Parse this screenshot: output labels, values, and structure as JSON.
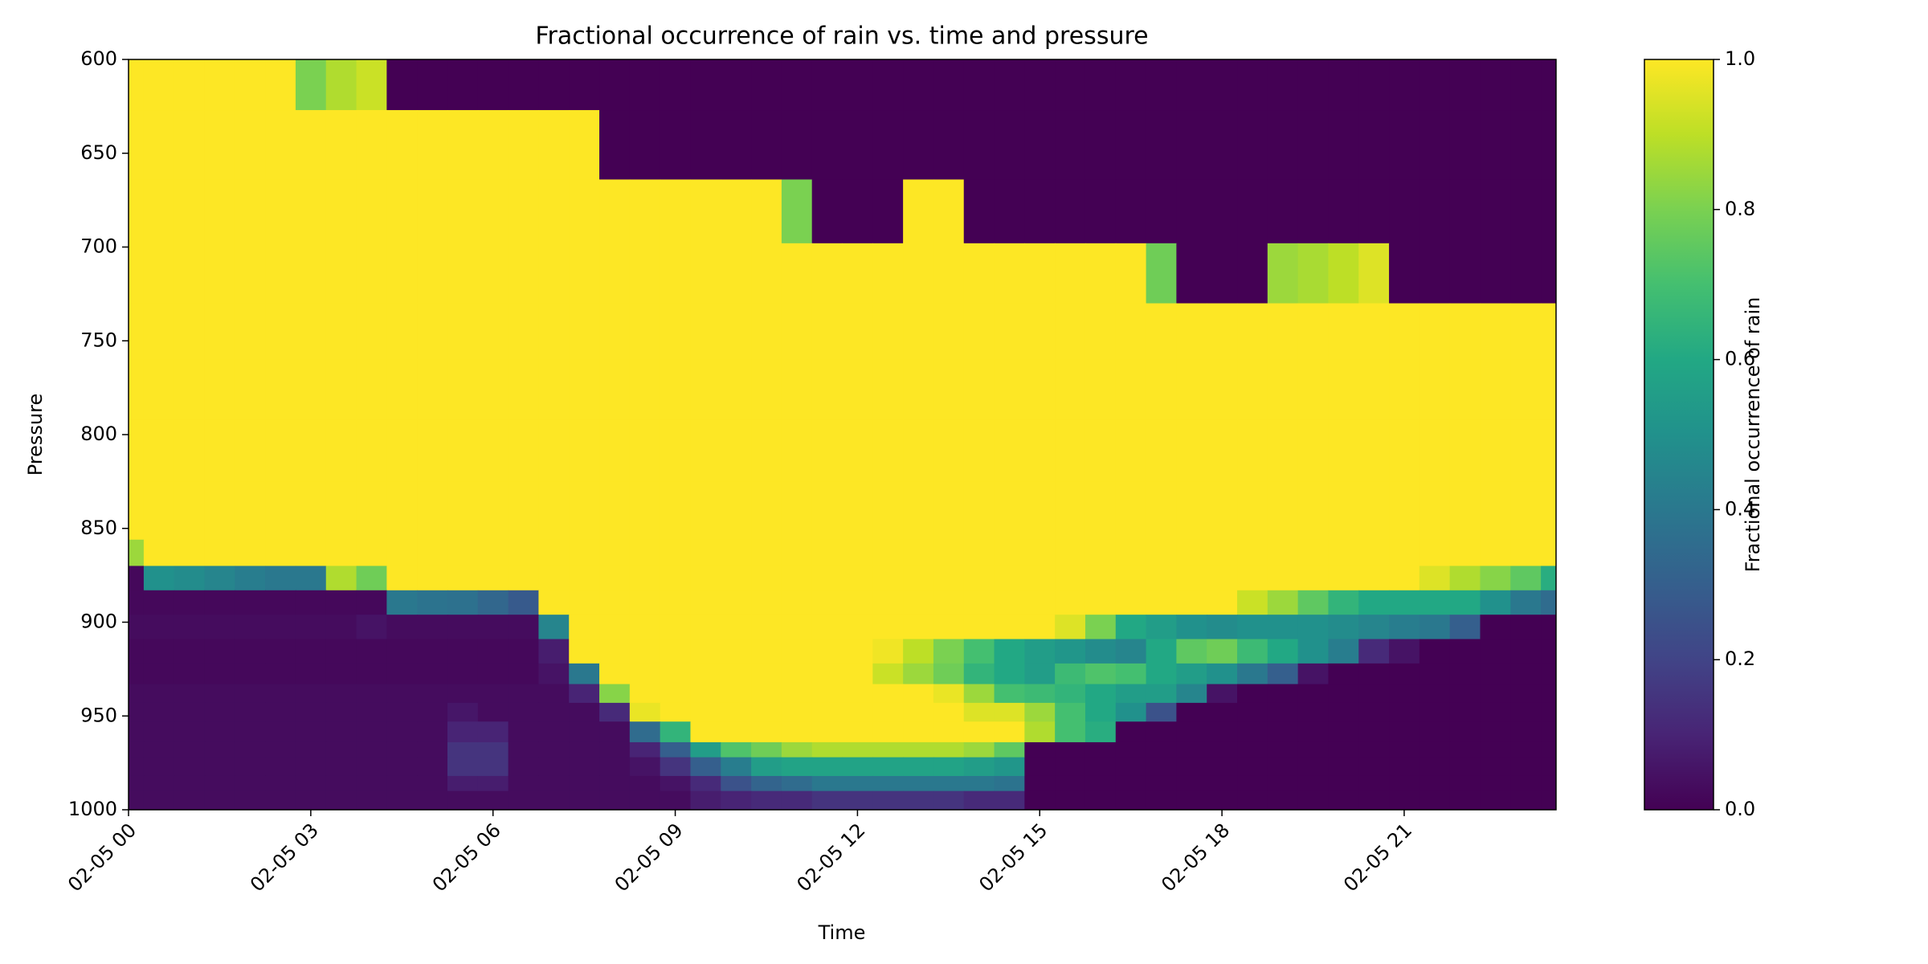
{
  "chart_data": {
    "type": "heatmap",
    "title": "Fractional occurrence of rain vs. time and pressure",
    "x_label": "Time",
    "y_label": "Pressure",
    "colorbar_label": "Fractional occurrence of rain",
    "colormap": "viridis",
    "x": [
      0,
      0.5,
      1,
      1.5,
      2,
      2.5,
      3,
      3.5,
      4,
      4.5,
      5,
      5.5,
      6,
      6.5,
      7,
      7.5,
      8,
      8.5,
      9,
      9.5,
      10,
      10.5,
      11,
      11.5,
      12,
      12.5,
      13,
      13.5,
      14,
      14.5,
      15,
      15.5,
      16,
      16.5,
      17,
      17.5,
      18,
      18.5,
      19,
      19.5,
      20,
      20.5,
      21,
      21.5,
      22,
      22.5,
      23,
      23.5
    ],
    "y_edges": [
      600,
      627,
      664,
      698,
      730,
      760,
      792,
      825,
      856,
      870,
      883,
      896,
      909,
      922,
      933,
      943,
      953,
      964,
      972,
      982,
      990,
      1000
    ],
    "z": [
      [
        1,
        1,
        1,
        1,
        1,
        1,
        0.8,
        0.88,
        0.92,
        0,
        0,
        0,
        0,
        0,
        0,
        0,
        0,
        0,
        0,
        0,
        0,
        0,
        0,
        0,
        0,
        0,
        0,
        0,
        0,
        0,
        0,
        0,
        0,
        0,
        0,
        0,
        0,
        0,
        0,
        0,
        0,
        0,
        0,
        0,
        0,
        0,
        0,
        0
      ],
      [
        1,
        1,
        1,
        1,
        1,
        1,
        1,
        1,
        1,
        1,
        1,
        1,
        1,
        1,
        1,
        1,
        0,
        0,
        0,
        0,
        0,
        0,
        0,
        0,
        0,
        0,
        0,
        0,
        0,
        0,
        0,
        0,
        0,
        0,
        0,
        0,
        0,
        0,
        0,
        0,
        0,
        0,
        0,
        0,
        0,
        0,
        0,
        0
      ],
      [
        1,
        1,
        1,
        1,
        1,
        1,
        1,
        1,
        1,
        1,
        1,
        1,
        1,
        1,
        1,
        1,
        1,
        1,
        1,
        1,
        1,
        1,
        0.8,
        0,
        0,
        0,
        1,
        1,
        0,
        0,
        0,
        0,
        0,
        0,
        0,
        0,
        0,
        0,
        0,
        0,
        0,
        0,
        0,
        0,
        0,
        0,
        0,
        0
      ],
      [
        1,
        1,
        1,
        1,
        1,
        1,
        1,
        1,
        1,
        1,
        1,
        1,
        1,
        1,
        1,
        1,
        1,
        1,
        1,
        1,
        1,
        1,
        1,
        1,
        1,
        1,
        1,
        1,
        1,
        1,
        1,
        1,
        1,
        1,
        0.78,
        0,
        0,
        0,
        0.85,
        0.87,
        0.9,
        0.95,
        0,
        0,
        0,
        0,
        0,
        0
      ],
      [
        1,
        1,
        1,
        1,
        1,
        1,
        1,
        1,
        1,
        1,
        1,
        1,
        1,
        1,
        1,
        1,
        1,
        1,
        1,
        1,
        1,
        1,
        1,
        1,
        1,
        1,
        1,
        1,
        1,
        1,
        1,
        1,
        1,
        1,
        1,
        1,
        1,
        1,
        1,
        1,
        1,
        1,
        1,
        1,
        1,
        1,
        1,
        1
      ],
      [
        1,
        1,
        1,
        1,
        1,
        1,
        1,
        1,
        1,
        1,
        1,
        1,
        1,
        1,
        1,
        1,
        1,
        1,
        1,
        1,
        1,
        1,
        1,
        1,
        1,
        1,
        1,
        1,
        1,
        1,
        1,
        1,
        1,
        1,
        1,
        1,
        1,
        1,
        1,
        1,
        1,
        1,
        1,
        1,
        1,
        1,
        1,
        1
      ],
      [
        1,
        1,
        1,
        1,
        1,
        1,
        1,
        1,
        1,
        1,
        1,
        1,
        1,
        1,
        1,
        1,
        1,
        1,
        1,
        1,
        1,
        1,
        1,
        1,
        1,
        1,
        1,
        1,
        1,
        1,
        1,
        1,
        1,
        1,
        1,
        1,
        1,
        1,
        1,
        1,
        1,
        1,
        1,
        1,
        1,
        1,
        1,
        1
      ],
      [
        1,
        1,
        1,
        1,
        1,
        1,
        1,
        1,
        1,
        1,
        1,
        1,
        1,
        1,
        1,
        1,
        1,
        1,
        1,
        1,
        1,
        1,
        1,
        1,
        1,
        1,
        1,
        1,
        1,
        1,
        1,
        1,
        1,
        1,
        1,
        1,
        1,
        1,
        1,
        1,
        1,
        1,
        1,
        1,
        1,
        1,
        1,
        1
      ],
      [
        0.85,
        1,
        1,
        1,
        1,
        1,
        1,
        1,
        1,
        1,
        1,
        1,
        1,
        1,
        1,
        1,
        1,
        1,
        1,
        1,
        1,
        1,
        1,
        1,
        1,
        1,
        1,
        1,
        1,
        1,
        1,
        1,
        1,
        1,
        1,
        1,
        1,
        1,
        1,
        1,
        1,
        1,
        1,
        1,
        1,
        1,
        1,
        1
      ],
      [
        0.02,
        0.5,
        0.48,
        0.45,
        0.42,
        0.4,
        0.4,
        0.88,
        0.78,
        1,
        1,
        1,
        1,
        1,
        1,
        1,
        1,
        1,
        1,
        1,
        1,
        1,
        1,
        1,
        1,
        1,
        1,
        1,
        1,
        1,
        1,
        1,
        1,
        1,
        1,
        1,
        1,
        1,
        1,
        1,
        1,
        1,
        1,
        0.95,
        0.88,
        0.82,
        0.75,
        0.62
      ],
      [
        0.02,
        0.02,
        0.02,
        0.02,
        0.02,
        0.02,
        0.02,
        0.02,
        0.02,
        0.4,
        0.38,
        0.37,
        0.33,
        0.28,
        1,
        1,
        1,
        1,
        1,
        1,
        1,
        1,
        1,
        1,
        1,
        1,
        1,
        1,
        1,
        1,
        1,
        1,
        1,
        1,
        1,
        1,
        1,
        0.92,
        0.85,
        0.75,
        0.65,
        0.6,
        0.6,
        0.6,
        0.6,
        0.5,
        0.4,
        0.35
      ],
      [
        0.03,
        0.03,
        0.03,
        0.03,
        0.03,
        0.03,
        0.03,
        0.03,
        0.05,
        0.03,
        0.03,
        0.03,
        0.03,
        0.03,
        0.45,
        1,
        1,
        1,
        1,
        1,
        1,
        1,
        1,
        1,
        1,
        1,
        1,
        1,
        1,
        1,
        1,
        0.95,
        0.8,
        0.6,
        0.55,
        0.5,
        0.48,
        0.5,
        0.5,
        0.5,
        0.48,
        0.45,
        0.42,
        0.4,
        0.3,
        0,
        0,
        0
      ],
      [
        0.02,
        0.02,
        0.02,
        0.02,
        0.02,
        0.02,
        0.02,
        0.02,
        0.02,
        0.02,
        0.02,
        0.02,
        0.02,
        0.02,
        0.08,
        1,
        1,
        1,
        1,
        1,
        1,
        1,
        1,
        1,
        1,
        0.98,
        0.9,
        0.8,
        0.7,
        0.6,
        0.55,
        0.52,
        0.48,
        0.45,
        0.6,
        0.75,
        0.78,
        0.68,
        0.6,
        0.5,
        0.42,
        0.12,
        0.05,
        0,
        0,
        0,
        0,
        0
      ],
      [
        0.02,
        0.02,
        0.02,
        0.02,
        0.02,
        0.02,
        0.02,
        0.02,
        0.02,
        0.02,
        0.02,
        0.02,
        0.02,
        0.02,
        0.05,
        0.4,
        1,
        1,
        1,
        1,
        1,
        1,
        1,
        1,
        1,
        0.92,
        0.85,
        0.78,
        0.65,
        0.6,
        0.55,
        0.68,
        0.72,
        0.7,
        0.6,
        0.55,
        0.5,
        0.4,
        0.3,
        0.05,
        0,
        0,
        0,
        0,
        0,
        0,
        0,
        0
      ],
      [
        0.03,
        0.03,
        0.03,
        0.03,
        0.03,
        0.03,
        0.03,
        0.03,
        0.03,
        0.03,
        0.03,
        0.03,
        0.03,
        0.03,
        0.03,
        0.1,
        0.82,
        1,
        1,
        1,
        1,
        1,
        1,
        1,
        1,
        1,
        1,
        0.97,
        0.85,
        0.7,
        0.68,
        0.65,
        0.6,
        0.55,
        0.55,
        0.45,
        0.05,
        0,
        0,
        0,
        0,
        0,
        0,
        0,
        0,
        0,
        0,
        0
      ],
      [
        0.03,
        0.03,
        0.03,
        0.03,
        0.03,
        0.03,
        0.03,
        0.03,
        0.03,
        0.03,
        0.03,
        0.06,
        0.03,
        0.03,
        0.03,
        0.03,
        0.12,
        0.97,
        1,
        1,
        1,
        1,
        1,
        1,
        1,
        1,
        1,
        1,
        0.95,
        0.95,
        0.85,
        0.7,
        0.6,
        0.5,
        0.25,
        0,
        0,
        0,
        0,
        0,
        0,
        0,
        0,
        0,
        0,
        0,
        0,
        0
      ],
      [
        0.03,
        0.03,
        0.03,
        0.03,
        0.03,
        0.03,
        0.03,
        0.03,
        0.03,
        0.03,
        0.03,
        0.1,
        0.1,
        0.03,
        0.03,
        0.03,
        0.03,
        0.35,
        0.65,
        1,
        1,
        1,
        1,
        1,
        1,
        1,
        1,
        1,
        1,
        1,
        0.88,
        0.7,
        0.62,
        0,
        0,
        0,
        0,
        0,
        0,
        0,
        0,
        0,
        0,
        0,
        0,
        0,
        0,
        0
      ],
      [
        0.03,
        0.03,
        0.03,
        0.03,
        0.03,
        0.03,
        0.03,
        0.03,
        0.03,
        0.03,
        0.03,
        0.15,
        0.15,
        0.03,
        0.03,
        0.03,
        0.03,
        0.1,
        0.3,
        0.55,
        0.72,
        0.78,
        0.85,
        0.88,
        0.88,
        0.88,
        0.88,
        0.88,
        0.85,
        0.75,
        0,
        0,
        0,
        0,
        0,
        0,
        0,
        0,
        0,
        0,
        0,
        0,
        0,
        0,
        0,
        0,
        0,
        0
      ],
      [
        0.03,
        0.03,
        0.03,
        0.03,
        0.03,
        0.03,
        0.03,
        0.03,
        0.03,
        0.03,
        0.03,
        0.15,
        0.15,
        0.03,
        0.03,
        0.03,
        0.03,
        0.05,
        0.15,
        0.3,
        0.42,
        0.55,
        0.58,
        0.58,
        0.58,
        0.58,
        0.58,
        0.58,
        0.55,
        0.52,
        0,
        0,
        0,
        0,
        0,
        0,
        0,
        0,
        0,
        0,
        0,
        0,
        0,
        0,
        0,
        0,
        0,
        0
      ],
      [
        0.03,
        0.03,
        0.03,
        0.03,
        0.03,
        0.03,
        0.03,
        0.03,
        0.03,
        0.03,
        0.03,
        0.08,
        0.08,
        0.03,
        0.03,
        0.03,
        0.03,
        0.03,
        0.05,
        0.12,
        0.25,
        0.32,
        0.35,
        0.4,
        0.4,
        0.4,
        0.4,
        0.4,
        0.4,
        0.38,
        0,
        0,
        0,
        0,
        0,
        0,
        0,
        0,
        0,
        0,
        0,
        0,
        0,
        0,
        0,
        0,
        0,
        0
      ],
      [
        0.03,
        0.03,
        0.03,
        0.03,
        0.03,
        0.03,
        0.03,
        0.03,
        0.03,
        0.03,
        0.03,
        0.03,
        0.03,
        0.03,
        0.03,
        0.03,
        0.03,
        0.03,
        0.03,
        0.08,
        0.1,
        0.12,
        0.12,
        0.15,
        0.15,
        0.15,
        0.15,
        0.15,
        0.12,
        0.12,
        0,
        0,
        0,
        0,
        0,
        0,
        0,
        0,
        0,
        0,
        0,
        0,
        0,
        0,
        0,
        0,
        0,
        0
      ]
    ],
    "xlim": [
      0,
      23.5
    ],
    "xticks": [
      {
        "value": 0,
        "label": "02-05 00"
      },
      {
        "value": 3,
        "label": "02-05 03"
      },
      {
        "value": 6,
        "label": "02-05 06"
      },
      {
        "value": 9,
        "label": "02-05 09"
      },
      {
        "value": 12,
        "label": "02-05 12"
      },
      {
        "value": 15,
        "label": "02-05 15"
      },
      {
        "value": 18,
        "label": "02-05 18"
      },
      {
        "value": 21,
        "label": "02-05 21"
      }
    ],
    "ylim": [
      600,
      1000
    ],
    "y_inverted": true,
    "yticks": [
      600,
      650,
      700,
      750,
      800,
      850,
      900,
      950,
      1000
    ],
    "clim": [
      0,
      1
    ],
    "cticks": [
      {
        "value": 0,
        "label": "0.0"
      },
      {
        "value": 0.2,
        "label": "0.2"
      },
      {
        "value": 0.4,
        "label": "0.4"
      },
      {
        "value": 0.6,
        "label": "0.6"
      },
      {
        "value": 0.8,
        "label": "0.8"
      },
      {
        "value": 1,
        "label": "1.0"
      }
    ]
  }
}
